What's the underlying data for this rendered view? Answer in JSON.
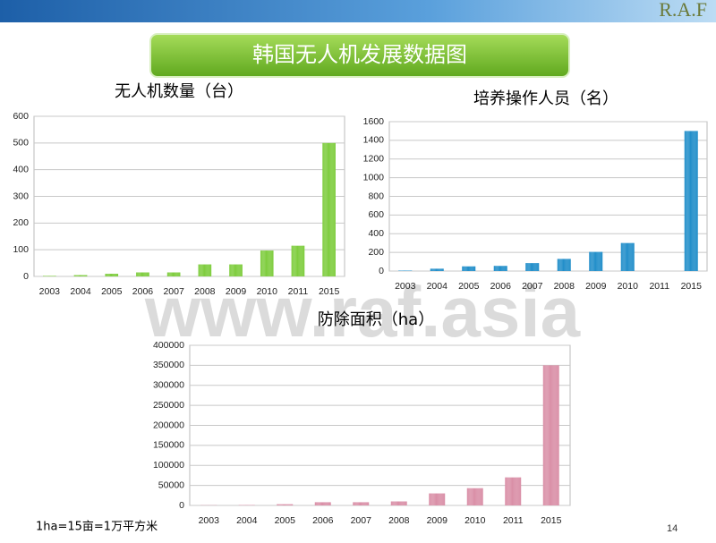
{
  "header": {
    "title": "韩国无人机发展数据图",
    "logo": "R.A.F"
  },
  "watermark": "www.raf.asia",
  "footnote": "1ha=15亩=1万平方米",
  "page_number": "14",
  "chart_data": [
    {
      "type": "bar",
      "title": "无人机数量（台）",
      "categories": [
        "2003",
        "2004",
        "2005",
        "2006",
        "2007",
        "2008",
        "2009",
        "2010",
        "2011",
        "2015"
      ],
      "values": [
        2,
        5,
        10,
        15,
        15,
        45,
        45,
        97,
        115,
        500
      ],
      "color": "#7dcc3c",
      "ylim": [
        0,
        600
      ],
      "yticks": [
        0,
        100,
        200,
        300,
        400,
        500,
        600
      ],
      "grid": true
    },
    {
      "type": "bar",
      "title": "培养操作人员（名）",
      "categories": [
        "2003",
        "2004",
        "2005",
        "2006",
        "2007",
        "2008",
        "2009",
        "2010",
        "2011",
        "2015"
      ],
      "values": [
        5,
        25,
        50,
        55,
        85,
        130,
        205,
        300,
        null,
        1500
      ],
      "color": "#1f8dc9",
      "ylim": [
        0,
        1600
      ],
      "yticks": [
        0,
        200,
        400,
        600,
        800,
        1000,
        1200,
        1400,
        1600
      ],
      "grid": true
    },
    {
      "type": "bar",
      "title": "防除面积（ha）",
      "categories": [
        "2003",
        "2004",
        "2005",
        "2006",
        "2007",
        "2008",
        "2009",
        "2010",
        "2011",
        "2015"
      ],
      "values": [
        500,
        1000,
        3000,
        8000,
        8000,
        10000,
        30000,
        43000,
        70000,
        350000
      ],
      "color": "#d98ea6",
      "ylim": [
        0,
        400000
      ],
      "yticks": [
        0,
        50000,
        100000,
        150000,
        200000,
        250000,
        300000,
        350000,
        400000
      ],
      "grid": true
    }
  ]
}
